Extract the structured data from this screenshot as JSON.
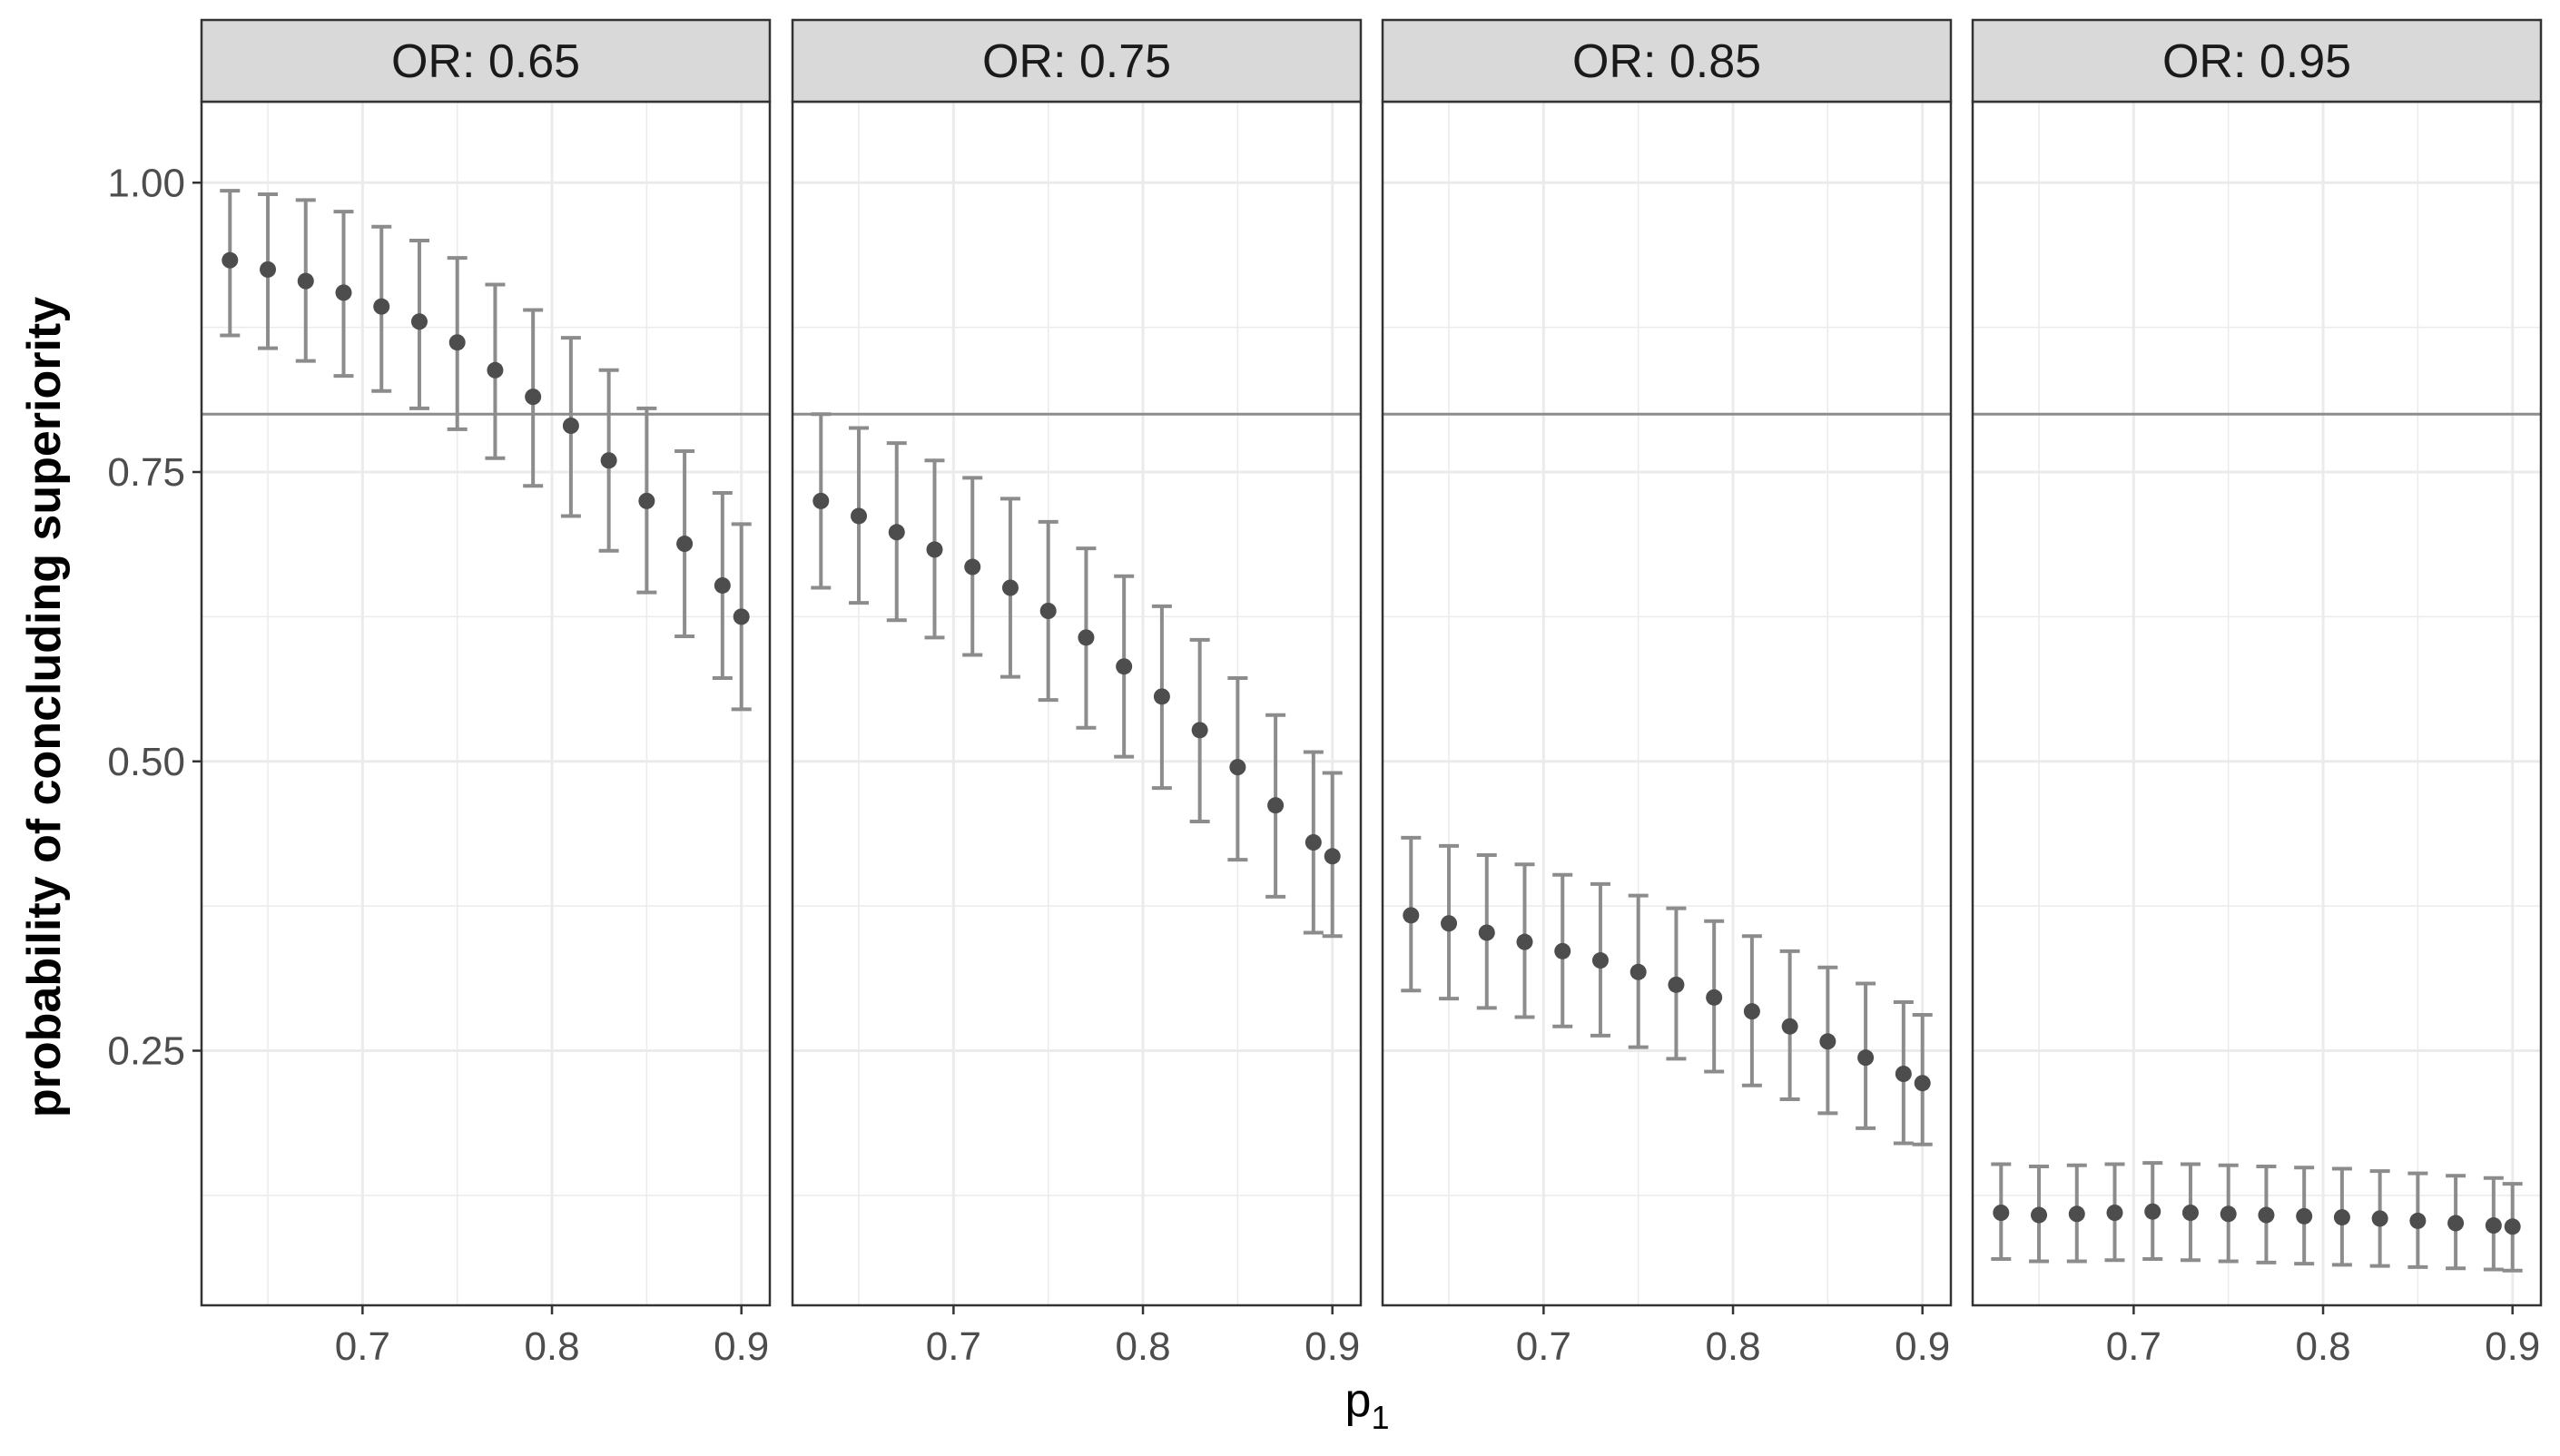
{
  "chart_data": {
    "type": "scatter",
    "xlabel": "p",
    "xlabel_subscript": "1",
    "ylabel": "probability of concluding superiority",
    "xlim": [
      0.615,
      0.915
    ],
    "ylim": [
      0.03,
      1.07
    ],
    "xticks": [
      0.7,
      0.8,
      0.9
    ],
    "xtick_labels": [
      "0.7",
      "0.8",
      "0.9"
    ],
    "yticks": [
      0.25,
      0.5,
      0.75,
      1.0
    ],
    "ytick_labels": [
      "0.25",
      "0.50",
      "0.75",
      "1.00"
    ],
    "reference_line_y": 0.8,
    "grid": true,
    "colors": {
      "point": "#4d4d4d",
      "errorbar": "#8c8c8c",
      "strip_fill": "#d9d9d9",
      "grid": "#ebebeb",
      "reference_line": "#8c8c8c"
    },
    "panels": [
      {
        "label": "OR: 0.65",
        "x": [
          0.63,
          0.65,
          0.67,
          0.69,
          0.71,
          0.73,
          0.75,
          0.77,
          0.79,
          0.81,
          0.83,
          0.85,
          0.87,
          0.89,
          0.9
        ],
        "y": [
          0.933,
          0.925,
          0.915,
          0.905,
          0.893,
          0.88,
          0.862,
          0.838,
          0.815,
          0.79,
          0.76,
          0.725,
          0.688,
          0.652,
          0.625
        ],
        "ci_low": [
          0.868,
          0.857,
          0.846,
          0.833,
          0.82,
          0.805,
          0.787,
          0.762,
          0.738,
          0.712,
          0.682,
          0.646,
          0.608,
          0.572,
          0.545
        ],
        "ci_high": [
          0.993,
          0.99,
          0.985,
          0.975,
          0.962,
          0.95,
          0.935,
          0.912,
          0.89,
          0.866,
          0.838,
          0.805,
          0.768,
          0.732,
          0.705
        ]
      },
      {
        "label": "OR: 0.75",
        "x": [
          0.63,
          0.65,
          0.67,
          0.69,
          0.71,
          0.73,
          0.75,
          0.77,
          0.79,
          0.81,
          0.83,
          0.85,
          0.87,
          0.89,
          0.9
        ],
        "y": [
          0.725,
          0.712,
          0.698,
          0.683,
          0.668,
          0.65,
          0.63,
          0.607,
          0.582,
          0.556,
          0.527,
          0.495,
          0.462,
          0.43,
          0.418
        ],
        "ci_low": [
          0.65,
          0.637,
          0.622,
          0.607,
          0.592,
          0.573,
          0.553,
          0.529,
          0.504,
          0.477,
          0.448,
          0.415,
          0.383,
          0.352,
          0.349
        ],
        "ci_high": [
          0.8,
          0.788,
          0.775,
          0.76,
          0.745,
          0.727,
          0.707,
          0.684,
          0.66,
          0.634,
          0.605,
          0.572,
          0.54,
          0.508,
          0.49
        ]
      },
      {
        "label": "OR: 0.85",
        "x": [
          0.63,
          0.65,
          0.67,
          0.69,
          0.71,
          0.73,
          0.75,
          0.77,
          0.79,
          0.81,
          0.83,
          0.85,
          0.87,
          0.89,
          0.9
        ],
        "y": [
          0.367,
          0.36,
          0.352,
          0.344,
          0.336,
          0.328,
          0.318,
          0.307,
          0.296,
          0.284,
          0.271,
          0.258,
          0.244,
          0.23,
          0.222
        ],
        "ci_low": [
          0.302,
          0.295,
          0.287,
          0.279,
          0.271,
          0.263,
          0.253,
          0.243,
          0.232,
          0.22,
          0.208,
          0.196,
          0.183,
          0.17,
          0.169
        ],
        "ci_high": [
          0.434,
          0.427,
          0.419,
          0.411,
          0.402,
          0.394,
          0.384,
          0.373,
          0.362,
          0.349,
          0.336,
          0.322,
          0.308,
          0.292,
          0.281
        ]
      },
      {
        "label": "OR: 0.95",
        "x": [
          0.63,
          0.65,
          0.67,
          0.69,
          0.71,
          0.73,
          0.75,
          0.77,
          0.79,
          0.81,
          0.83,
          0.85,
          0.87,
          0.89,
          0.9
        ],
        "y": [
          0.11,
          0.108,
          0.109,
          0.11,
          0.111,
          0.11,
          0.109,
          0.108,
          0.107,
          0.106,
          0.105,
          0.103,
          0.101,
          0.099,
          0.098
        ],
        "ci_low": [
          0.07,
          0.068,
          0.068,
          0.069,
          0.07,
          0.069,
          0.068,
          0.067,
          0.066,
          0.065,
          0.064,
          0.063,
          0.062,
          0.061,
          0.06
        ],
        "ci_high": [
          0.152,
          0.15,
          0.151,
          0.152,
          0.153,
          0.152,
          0.151,
          0.15,
          0.149,
          0.148,
          0.146,
          0.144,
          0.142,
          0.14,
          0.135
        ]
      }
    ]
  }
}
